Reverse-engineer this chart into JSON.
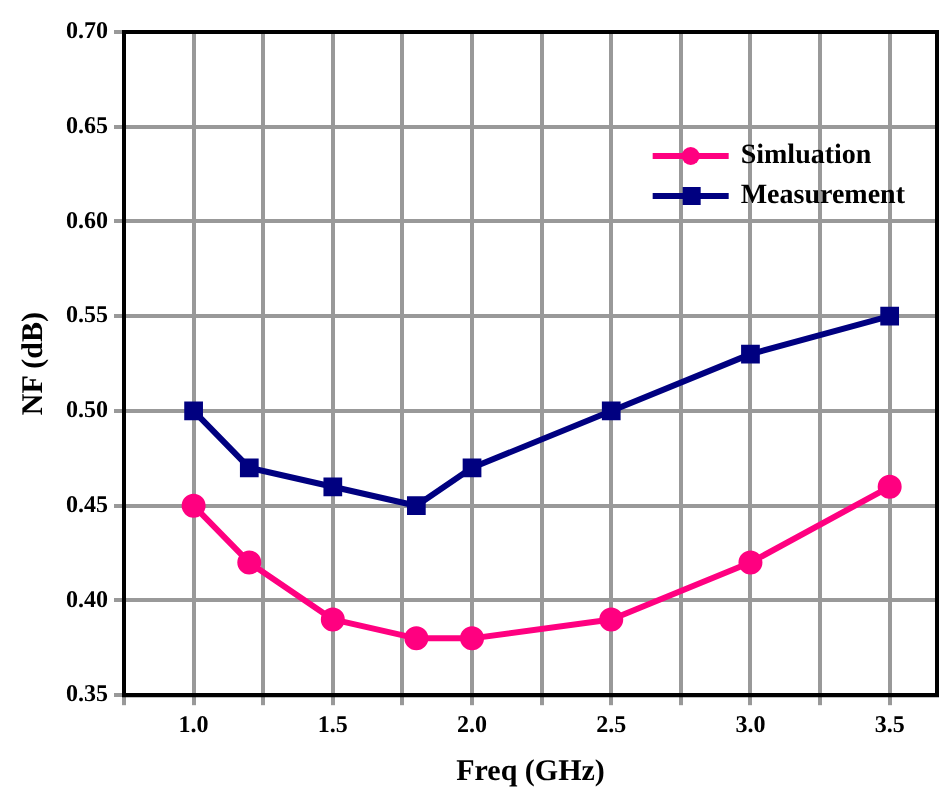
{
  "chart_data": {
    "type": "line",
    "xlabel": "Freq (GHz)",
    "ylabel": "NF (dB)",
    "x": [
      1.0,
      1.2,
      1.5,
      1.8,
      2.0,
      2.5,
      3.0,
      3.5
    ],
    "series": [
      {
        "name": "Simluation",
        "color": "#ff0080",
        "marker": "circle",
        "values": [
          0.45,
          0.42,
          0.39,
          0.38,
          0.38,
          0.39,
          0.42,
          0.46
        ]
      },
      {
        "name": "Measurement",
        "color": "#000080",
        "marker": "square",
        "values": [
          0.5,
          0.47,
          0.46,
          0.45,
          0.47,
          0.5,
          0.53,
          0.55
        ]
      }
    ],
    "xlim": [
      0.75,
      3.67
    ],
    "xticks": [
      {
        "value": 0.75,
        "label": null
      },
      "1.0",
      {
        "value": 1.25,
        "label": null
      },
      {
        "value": 1.5,
        "label": "1.5"
      },
      {
        "value": 1.75,
        "label": null
      },
      {
        "value": 2,
        "label": "2.0"
      },
      {
        "value": 2.25,
        "label": null
      },
      {
        "value": 2.5,
        "label": "2.5"
      },
      {
        "value": 2.75,
        "label": null
      },
      {
        "value": 3,
        "label": "3.0"
      },
      {
        "value": 3.25,
        "label": null
      },
      {
        "value": 3.5,
        "label": "3.5"
      }
    ],
    "ylim": [
      0.35,
      0.7
    ],
    "yticks": [
      {
        "value": 0.35,
        "label": "0.35"
      },
      {
        "value": 0.4,
        "label": "0.40"
      },
      {
        "value": 0.45,
        "label": "0.45"
      },
      {
        "value": 0.5,
        "label": "0.50"
      },
      {
        "value": 0.55,
        "label": "0.55"
      },
      {
        "value": 0.6,
        "label": "0.60"
      },
      {
        "value": 0.65,
        "label": "0.65"
      },
      {
        "value": 0.7,
        "label": "0.70"
      }
    ],
    "grid": true,
    "legend": "top right",
    "line_style": "solid"
  }
}
